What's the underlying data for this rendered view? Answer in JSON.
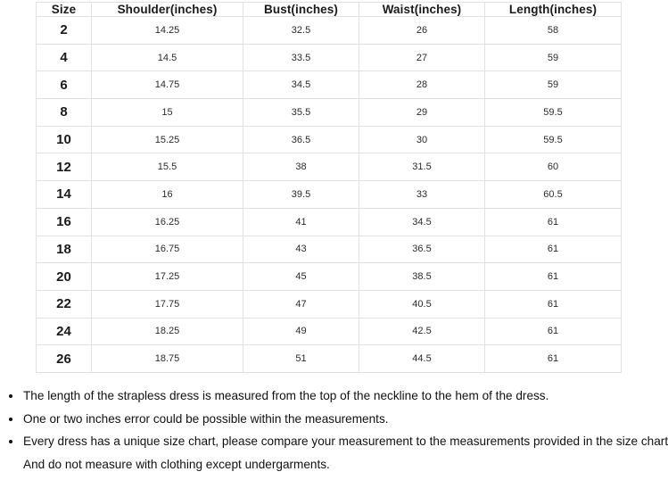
{
  "table": {
    "columns": [
      {
        "key": "size",
        "label": "Size"
      },
      {
        "key": "shoulder",
        "label": "Shoulder(inches)"
      },
      {
        "key": "bust",
        "label": "Bust(inches)"
      },
      {
        "key": "waist",
        "label": "Waist(inches)"
      },
      {
        "key": "length",
        "label": "Length(inches)"
      }
    ],
    "rows": [
      [
        "2",
        "14.25",
        "32.5",
        "26",
        "58"
      ],
      [
        "4",
        "14.5",
        "33.5",
        "27",
        "59"
      ],
      [
        "6",
        "14.75",
        "34.5",
        "28",
        "59"
      ],
      [
        "8",
        "15",
        "35.5",
        "29",
        "59.5"
      ],
      [
        "10",
        "15.25",
        "36.5",
        "30",
        "59.5"
      ],
      [
        "12",
        "15.5",
        "38",
        "31.5",
        "60"
      ],
      [
        "14",
        "16",
        "39.5",
        "33",
        "60.5"
      ],
      [
        "16",
        "16.25",
        "41",
        "34.5",
        "61"
      ],
      [
        "18",
        "16.75",
        "43",
        "36.5",
        "61"
      ],
      [
        "20",
        "17.25",
        "45",
        "38.5",
        "61"
      ],
      [
        "22",
        "17.75",
        "47",
        "40.5",
        "61"
      ],
      [
        "24",
        "18.25",
        "49",
        "42.5",
        "61"
      ],
      [
        "26",
        "18.75",
        "51",
        "44.5",
        "61"
      ]
    ]
  },
  "notes": {
    "items": [
      "The length of the strapless dress is measured from the top of the neckline to the hem of the dress.",
      "One or two inches error could be possible within the measurements.",
      "Every dress has a unique size chart, please compare your measurement to the measurements provided in the size chart. And do not measure with clothing except undergarments."
    ]
  },
  "colors": {
    "table_border": "#e2e2e2",
    "header_text": "#1a1a1a",
    "cell_text": "#2b2b2b",
    "note_text": "#111111",
    "background": "#ffffff"
  }
}
